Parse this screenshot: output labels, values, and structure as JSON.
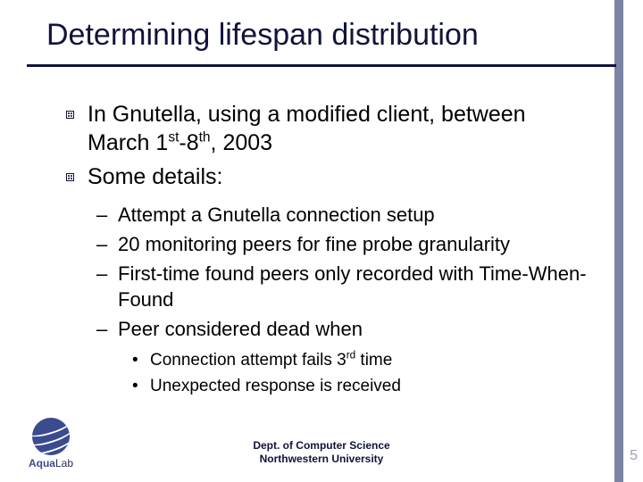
{
  "colors": {
    "title": "#10133b",
    "stripe": "#7b84a3",
    "pagenum": "#9a9fb5",
    "logo_primary": "#3b4b8f"
  },
  "title": "Determining lifespan distribution",
  "bullets": {
    "b1_pre": "In Gnutella, using a modified client, between March 1",
    "b1_sup1": "st",
    "b1_mid": "-8",
    "b1_sup2": "th",
    "b1_post": ", 2003",
    "b2": "Some details:",
    "sub": {
      "s1": "Attempt a Gnutella connection setup",
      "s2": "20 monitoring peers for fine probe granularity",
      "s3": "First-time found peers only recorded with Time-When-Found",
      "s4": "Peer considered dead when",
      "subsub": {
        "d1_pre": "Connection attempt fails 3",
        "d1_sup": "rd",
        "d1_post": " time",
        "d2": "Unexpected response is received"
      }
    }
  },
  "footer": {
    "line1": "Dept. of Computer Science",
    "line2": "Northwestern University"
  },
  "logo": {
    "text_bold": "Aqua",
    "text_rest": "Lab"
  },
  "page_number": "5"
}
